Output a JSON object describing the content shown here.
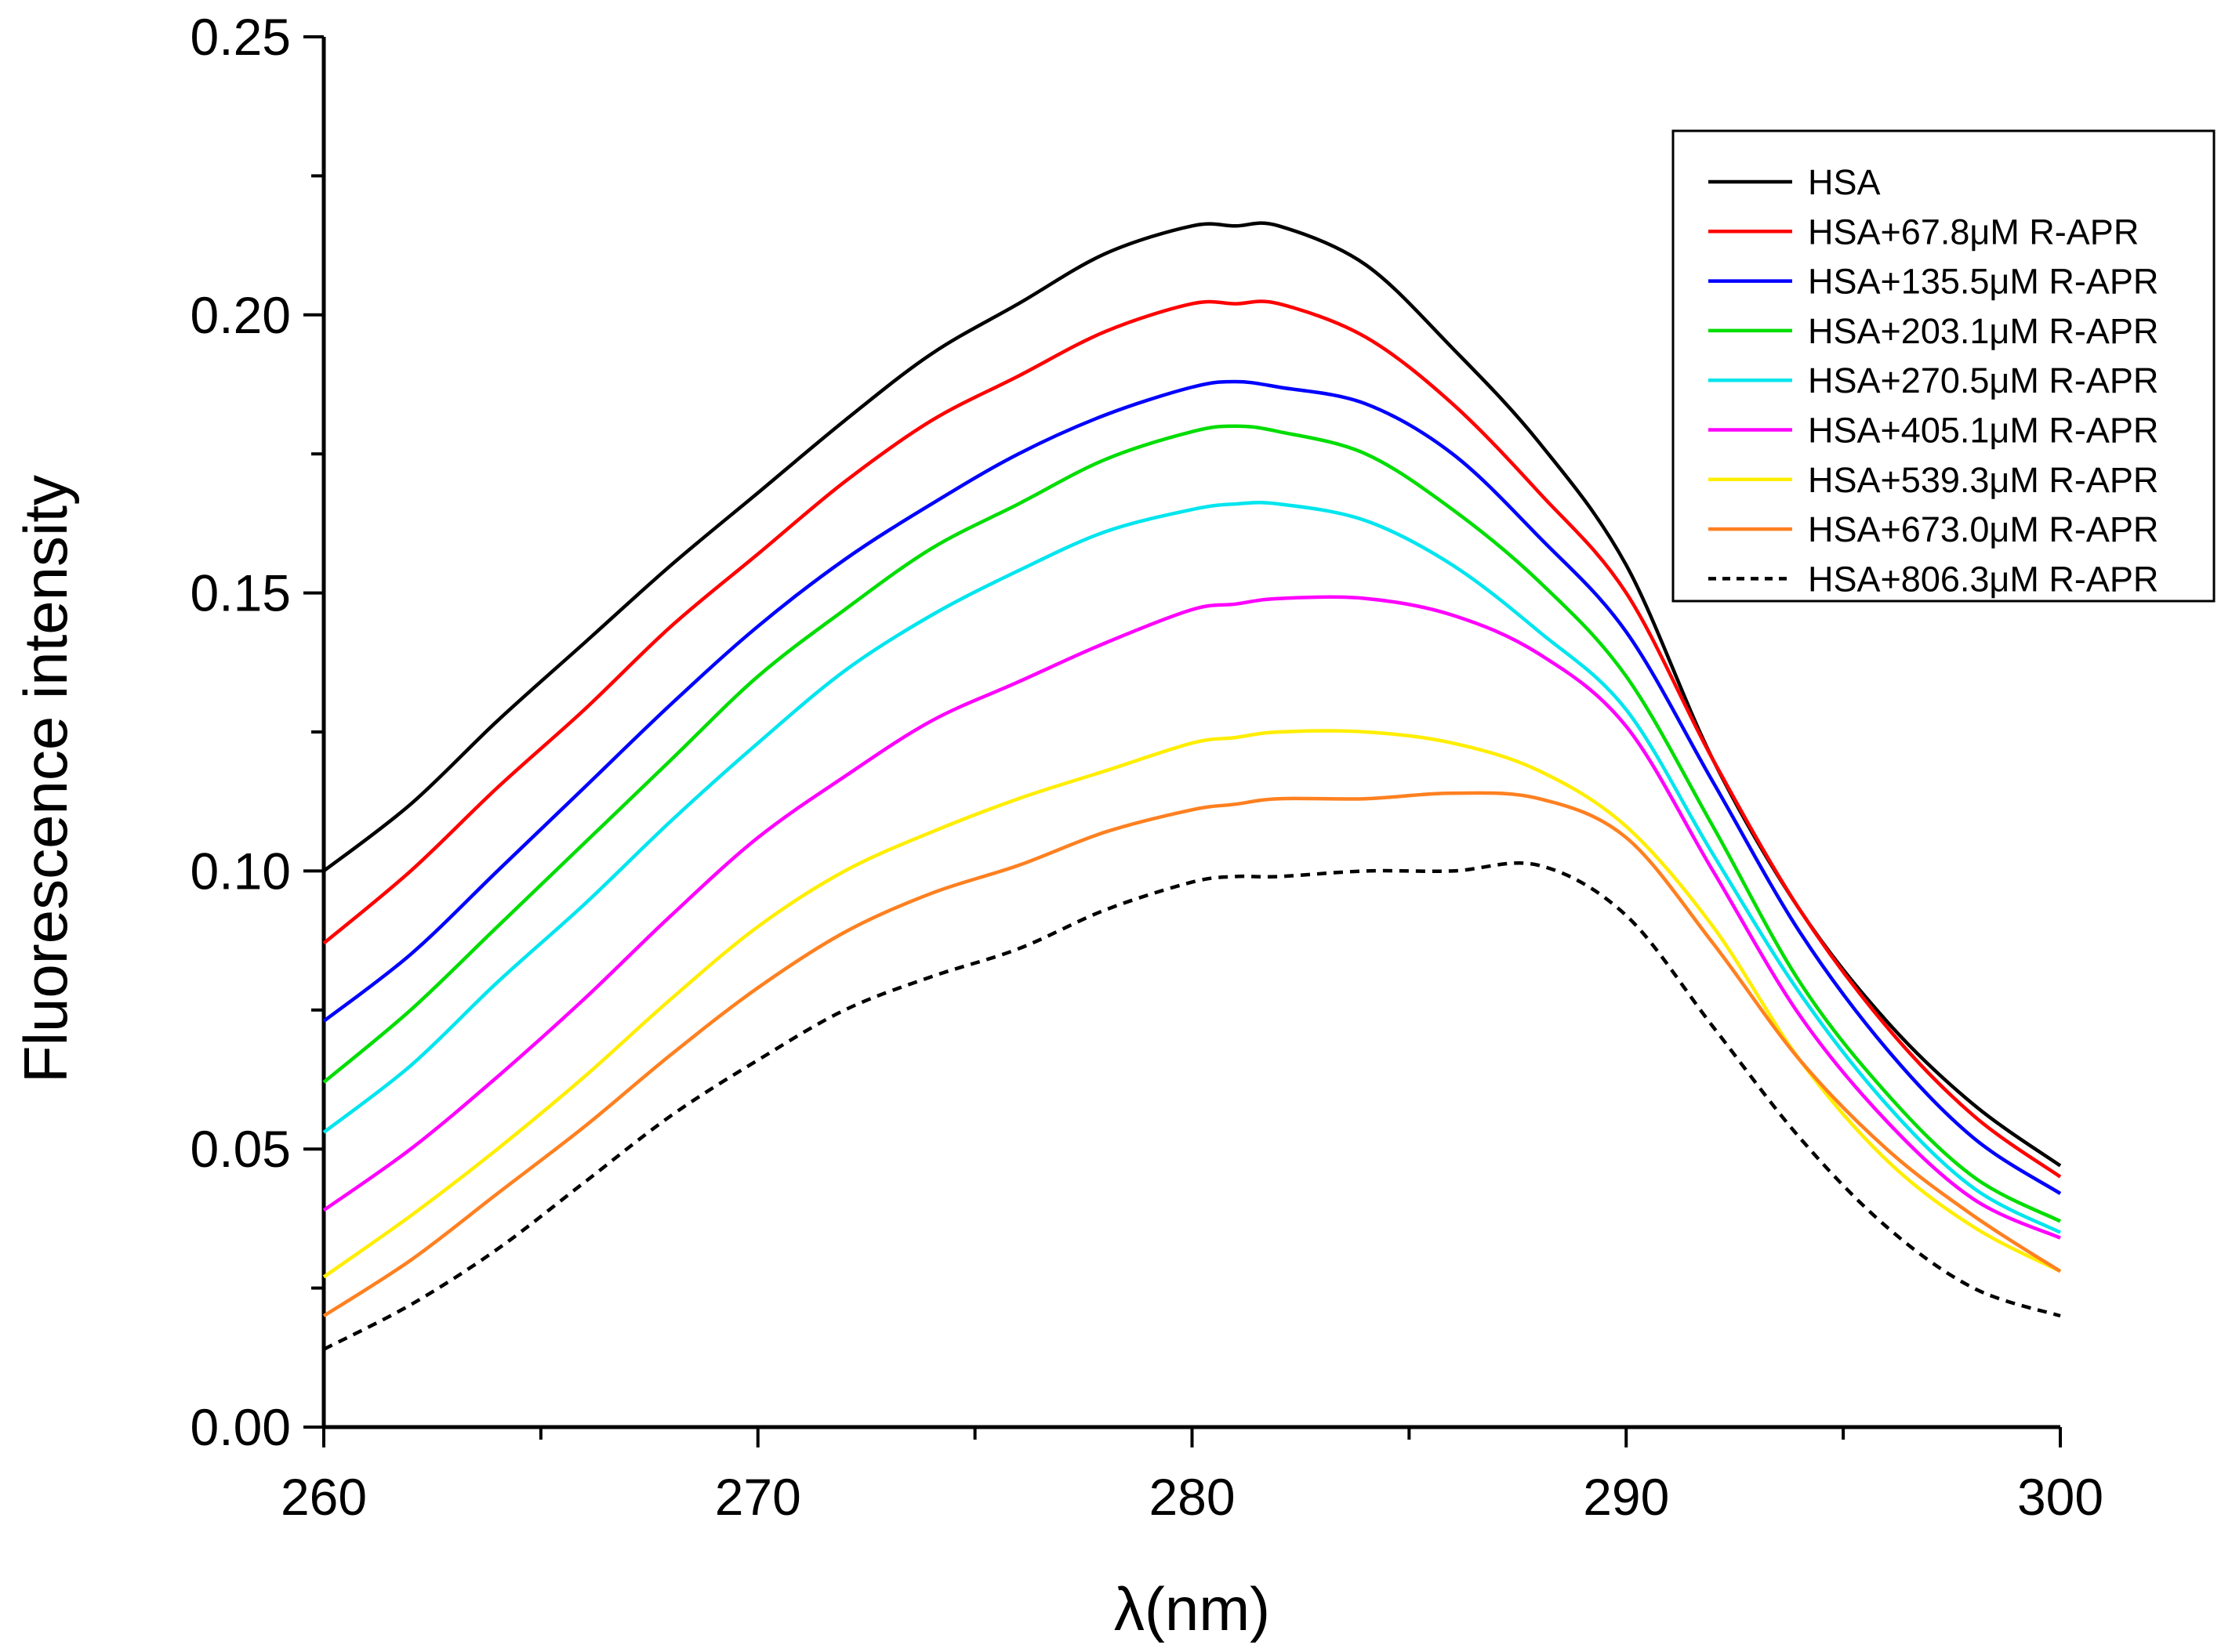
{
  "chart_data": {
    "type": "line",
    "title": "",
    "xlabel": "λ(nm)",
    "ylabel": "Fluorescence intensity",
    "xlim": [
      260,
      300
    ],
    "ylim": [
      0,
      0.25
    ],
    "x_ticks": [
      "260",
      "270",
      "280",
      "290",
      "300"
    ],
    "y_ticks": [
      "0.00",
      "0.05",
      "0.10",
      "0.15",
      "0.20",
      "0.25"
    ],
    "grid": false,
    "legend_position": "top-right",
    "x": [
      260,
      262,
      264,
      266,
      268,
      270,
      272,
      274,
      276,
      278,
      280,
      281,
      282,
      284,
      286,
      288,
      290,
      292,
      294,
      296,
      298,
      300
    ],
    "series": [
      {
        "name": "HSA",
        "color": "#000000",
        "dash": "solid",
        "values": [
          0.1,
          0.112,
          0.127,
          0.141,
          0.155,
          0.168,
          0.181,
          0.193,
          0.202,
          0.211,
          0.216,
          0.216,
          0.216,
          0.209,
          0.194,
          0.177,
          0.155,
          0.12,
          0.093,
          0.073,
          0.058,
          0.047
        ]
      },
      {
        "name": "HSA+67.8μM R-APR",
        "color": "#ff0000",
        "dash": "solid",
        "values": [
          0.087,
          0.1,
          0.115,
          0.129,
          0.144,
          0.157,
          0.17,
          0.181,
          0.189,
          0.197,
          0.202,
          0.202,
          0.202,
          0.196,
          0.184,
          0.168,
          0.15,
          0.12,
          0.093,
          0.072,
          0.056,
          0.045
        ]
      },
      {
        "name": "HSA+135.5μM R-APR",
        "color": "#0000ff",
        "dash": "solid",
        "values": [
          0.073,
          0.085,
          0.1,
          0.115,
          0.13,
          0.144,
          0.156,
          0.166,
          0.175,
          0.182,
          0.187,
          0.188,
          0.187,
          0.184,
          0.175,
          0.16,
          0.143,
          0.116,
          0.089,
          0.068,
          0.052,
          0.042
        ]
      },
      {
        "name": "HSA+203.1μM R-APR",
        "color": "#00dd00",
        "dash": "solid",
        "values": [
          0.062,
          0.075,
          0.09,
          0.105,
          0.12,
          0.135,
          0.147,
          0.158,
          0.166,
          0.174,
          0.179,
          0.18,
          0.179,
          0.175,
          0.165,
          0.152,
          0.135,
          0.108,
          0.08,
          0.06,
          0.045,
          0.037
        ]
      },
      {
        "name": "HSA+270.5μM R-APR",
        "color": "#00e5ee",
        "dash": "solid",
        "values": [
          0.053,
          0.065,
          0.08,
          0.094,
          0.109,
          0.123,
          0.136,
          0.146,
          0.154,
          0.161,
          0.165,
          0.166,
          0.166,
          0.163,
          0.155,
          0.143,
          0.129,
          0.103,
          0.078,
          0.058,
          0.043,
          0.035
        ]
      },
      {
        "name": "HSA+405.1μM R-APR",
        "color": "#ff00ff",
        "dash": "solid",
        "values": [
          0.039,
          0.05,
          0.063,
          0.077,
          0.092,
          0.106,
          0.117,
          0.127,
          0.134,
          0.141,
          0.147,
          0.148,
          0.149,
          0.149,
          0.146,
          0.139,
          0.126,
          0.1,
          0.074,
          0.055,
          0.041,
          0.034
        ]
      },
      {
        "name": "HSA+539.3μM R-APR",
        "color": "#ffee00",
        "dash": "solid",
        "values": [
          0.027,
          0.038,
          0.05,
          0.063,
          0.077,
          0.09,
          0.1,
          0.107,
          0.113,
          0.118,
          0.123,
          0.124,
          0.125,
          0.125,
          0.123,
          0.118,
          0.108,
          0.09,
          0.066,
          0.048,
          0.036,
          0.028
        ]
      },
      {
        "name": "HSA+673.0μM R-APR",
        "color": "#ff8020",
        "dash": "solid",
        "values": [
          0.02,
          0.03,
          0.042,
          0.054,
          0.067,
          0.079,
          0.089,
          0.096,
          0.101,
          0.107,
          0.111,
          0.112,
          0.113,
          0.113,
          0.114,
          0.113,
          0.106,
          0.087,
          0.066,
          0.05,
          0.038,
          0.028
        ]
      },
      {
        "name": "HSA+806.3μM R-APR",
        "color": "#000000",
        "dash": "dashed",
        "values": [
          0.014,
          0.022,
          0.032,
          0.044,
          0.056,
          0.066,
          0.075,
          0.081,
          0.086,
          0.093,
          0.098,
          0.099,
          0.099,
          0.1,
          0.1,
          0.101,
          0.092,
          0.072,
          0.052,
          0.036,
          0.025,
          0.02
        ]
      }
    ]
  }
}
